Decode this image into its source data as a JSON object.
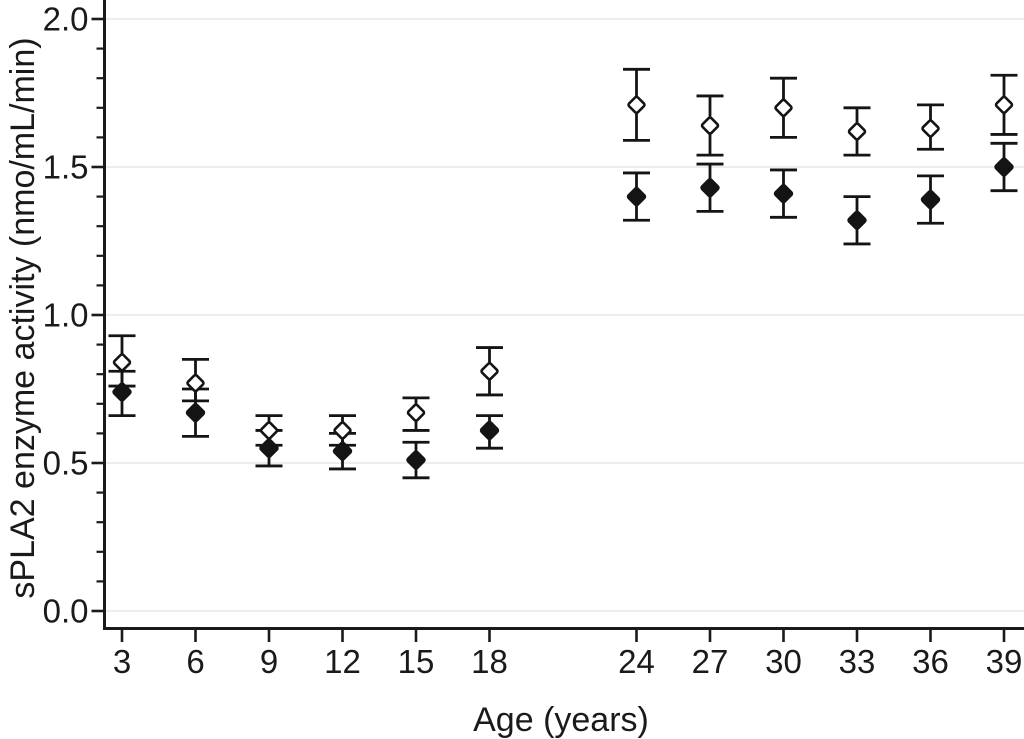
{
  "chart_data": {
    "type": "scatter",
    "title": "",
    "xlabel": "Age (years)",
    "ylabel": "sPLA2 enzyme activity (nmo/mL/min)",
    "x": [
      3,
      6,
      9,
      12,
      15,
      18,
      24,
      27,
      30,
      33,
      36,
      39
    ],
    "x_tick_labels": [
      "3",
      "6",
      "9",
      "12",
      "15",
      "18",
      "24",
      "27",
      "30",
      "33",
      "36",
      "39"
    ],
    "y_major_ticks": [
      0.0,
      0.5,
      1.0,
      1.5,
      2.0
    ],
    "y_tick_labels": [
      "0.0",
      "0.5",
      "1.0",
      "1.5",
      "2.0"
    ],
    "y_minor_tick_step": 0.1,
    "ylim": [
      0.0,
      2.0
    ],
    "xlim": [
      2.3,
      39.8
    ],
    "grid": "horizontal lines at major y ticks, very light gray",
    "legend": "none",
    "series": [
      {
        "name": "open-diamond-series",
        "marker": "open-diamond",
        "values": [
          0.84,
          0.77,
          0.61,
          0.61,
          0.67,
          0.81,
          1.71,
          1.64,
          1.7,
          1.62,
          1.63,
          1.71
        ],
        "err_low": [
          0.76,
          0.71,
          0.56,
          0.56,
          0.61,
          0.73,
          1.59,
          1.54,
          1.6,
          1.54,
          1.56,
          1.61
        ],
        "err_high": [
          0.93,
          0.85,
          0.66,
          0.66,
          0.72,
          0.89,
          1.83,
          1.74,
          1.8,
          1.7,
          1.71,
          1.81
        ]
      },
      {
        "name": "filled-diamond-series",
        "marker": "filled-diamond",
        "values": [
          0.74,
          0.67,
          0.55,
          0.54,
          0.51,
          0.61,
          1.4,
          1.43,
          1.41,
          1.32,
          1.39,
          1.5
        ],
        "err_low": [
          0.66,
          0.59,
          0.49,
          0.48,
          0.45,
          0.55,
          1.32,
          1.35,
          1.33,
          1.24,
          1.31,
          1.42
        ],
        "err_high": [
          0.81,
          0.75,
          0.61,
          0.6,
          0.57,
          0.66,
          1.48,
          1.51,
          1.49,
          1.4,
          1.47,
          1.58
        ]
      }
    ],
    "colors": {
      "background": "#ffffff",
      "axis": "#1a1a1a",
      "grid": "#ededed",
      "error_bar": "#141414",
      "open_marker_fill": "#ffffff",
      "filled_marker_fill": "#141414",
      "marker_stroke": "#141414"
    }
  }
}
